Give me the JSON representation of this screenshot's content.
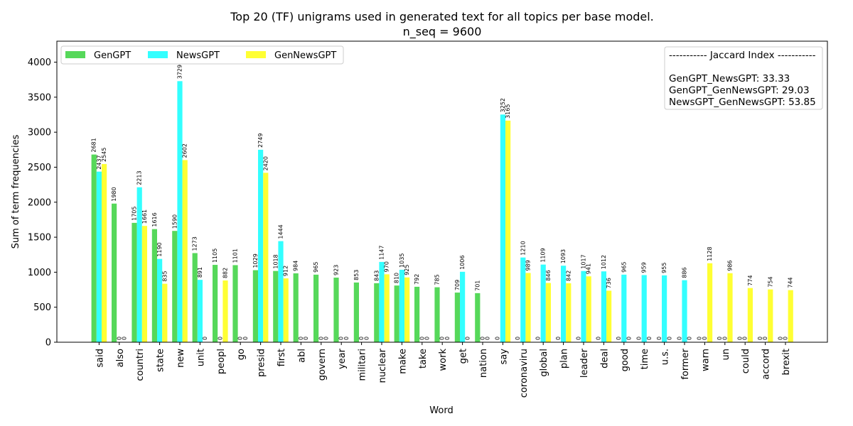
{
  "chart_data": {
    "type": "bar",
    "title": "Top 20 (TF) unigrams used in generated text for all topics per base model.",
    "subtitle": "n_seq = 9600",
    "xlabel": "Word",
    "ylabel": "Sum of term frequencies",
    "ylim": [
      0,
      4300
    ],
    "yticks": [
      0,
      500,
      1000,
      1500,
      2000,
      2500,
      3000,
      3500,
      4000
    ],
    "grid": false,
    "legend_position": "top-left",
    "categories": [
      "said",
      "also",
      "countri",
      "state",
      "new",
      "unit",
      "peopl",
      "go",
      "presid",
      "first",
      "abl",
      "govern",
      "year",
      "militari",
      "nuclear",
      "make",
      "take",
      "work",
      "get",
      "nation",
      "say",
      "coronaviru",
      "global",
      "plan",
      "leader",
      "deal",
      "good",
      "time",
      "u.s.",
      "former",
      "warn",
      "un",
      "could",
      "accord",
      "brexit"
    ],
    "series": [
      {
        "name": "GenGPT",
        "color": "#56d85a",
        "values": [
          2681,
          1980,
          1705,
          1616,
          1590,
          1273,
          1105,
          1101,
          1029,
          1018,
          984,
          965,
          923,
          853,
          843,
          810,
          792,
          785,
          709,
          701,
          0,
          0,
          0,
          0,
          0,
          0,
          0,
          0,
          0,
          0,
          0,
          0,
          0,
          0,
          0
        ]
      },
      {
        "name": "NewsGPT",
        "color": "#33ffff",
        "values": [
          2437,
          0,
          2213,
          1190,
          3729,
          891,
          0,
          0,
          2749,
          1444,
          0,
          0,
          0,
          0,
          1147,
          1035,
          0,
          0,
          1006,
          0,
          3252,
          1210,
          1109,
          1093,
          1017,
          1012,
          965,
          959,
          955,
          886,
          0,
          0,
          0,
          0,
          0
        ]
      },
      {
        "name": "GenNewsGPT",
        "color": "#ffff33",
        "values": [
          2545,
          0,
          1661,
          835,
          2602,
          0,
          882,
          0,
          2420,
          912,
          0,
          0,
          0,
          0,
          970,
          925,
          0,
          0,
          0,
          0,
          3165,
          989,
          846,
          842,
          941,
          736,
          0,
          0,
          0,
          0,
          1128,
          986,
          774,
          754,
          744
        ]
      }
    ],
    "jaccard": {
      "header": "----------- Jaccard Index -----------",
      "lines": [
        "GenGPT_NewsGPT: 33.33",
        "GenGPT_GenNewsGPT: 29.03",
        "NewsGPT_GenNewsGPT: 53.85"
      ]
    }
  }
}
